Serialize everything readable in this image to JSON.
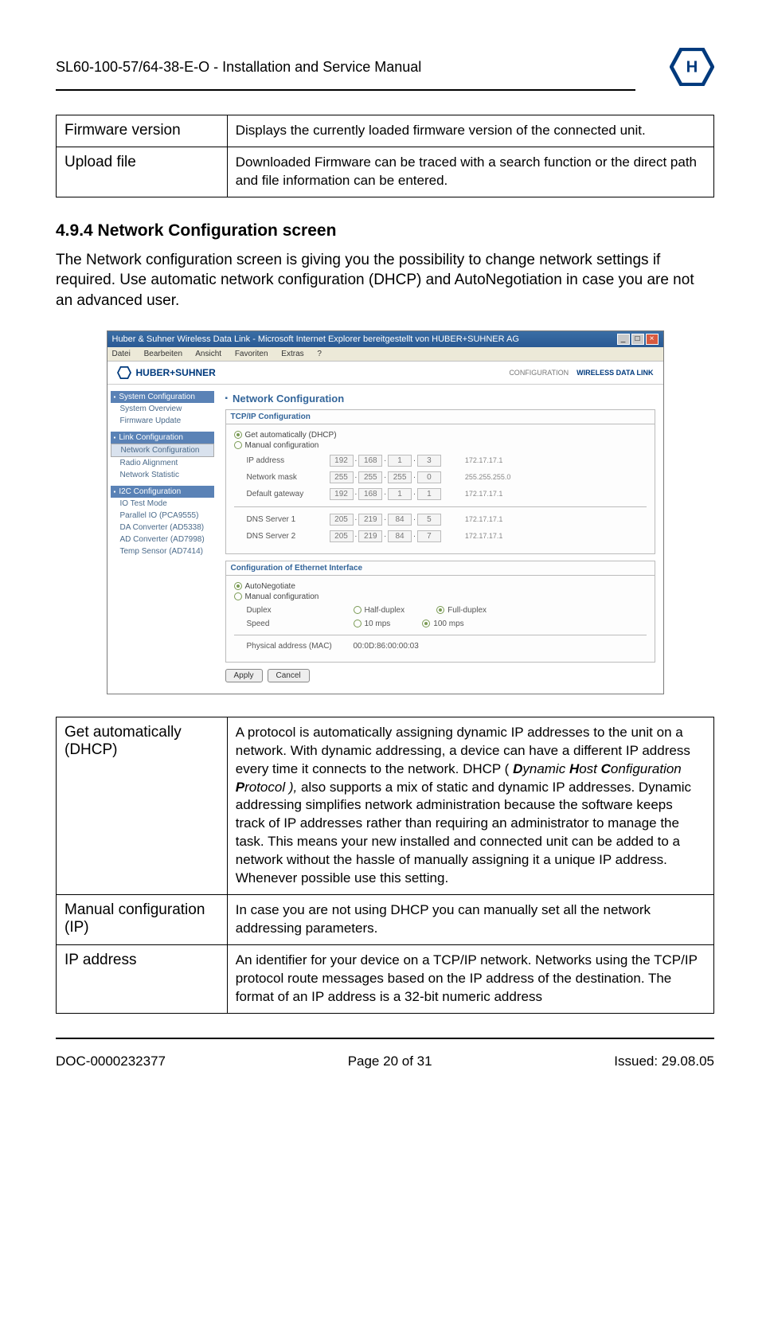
{
  "doc": {
    "header": "SL60-100-57/64-38-E-O  -  Installation and Service Manual",
    "footer_left": "DOC-0000232377",
    "footer_center": "Page 20 of 31",
    "footer_right": "Issued: 29.08.05"
  },
  "table1": {
    "rows": [
      {
        "term": "Firmware version",
        "desc": "Displays the currently loaded firmware version of the connected unit."
      },
      {
        "term": "Upload file",
        "desc": "Downloaded Firmware can be traced with a search function or the direct path and file information can be entered."
      }
    ]
  },
  "section": {
    "heading": "4.9.4  Network Configuration screen",
    "body": "The Network configuration screen is giving you the possibility to change network settings if required. Use automatic network configuration (DHCP) and AutoNegotiation in case you are not an advanced user."
  },
  "screenshot": {
    "title": "Huber & Suhner Wireless Data Link - Microsoft Internet Explorer bereitgestellt von HUBER+SUHNER AG",
    "menus": [
      "Datei",
      "Bearbeiten",
      "Ansicht",
      "Favoriten",
      "Extras",
      "?"
    ],
    "brand": "HUBER+SUHNER",
    "header_text_1": "CONFIGURATION",
    "header_text_2": "WIRELESS DATA LINK",
    "sidebar": {
      "groups": [
        {
          "head": "System Configuration",
          "items": [
            {
              "label": "System Overview",
              "active": false
            },
            {
              "label": "Firmware Update",
              "active": false
            }
          ]
        },
        {
          "head": "Link Configuration",
          "items": [
            {
              "label": "Network Configuration",
              "active": true
            },
            {
              "label": "Radio Alignment",
              "active": false
            },
            {
              "label": "Network Statistic",
              "active": false
            }
          ]
        },
        {
          "head": "I2C Configuration",
          "items": [
            {
              "label": "IO Test Mode",
              "active": false
            },
            {
              "label": "Parallel IO (PCA9555)",
              "active": false
            },
            {
              "label": "DA Converter (AD5338)",
              "active": false
            },
            {
              "label": "AD Converter (AD7998)",
              "active": false
            },
            {
              "label": "Temp Sensor (AD7414)",
              "active": false
            }
          ]
        }
      ]
    },
    "main": {
      "title": "Network Configuration",
      "tcpip": {
        "box_title": "TCP/IP Configuration",
        "radio_dhcp": "Get automatically (DHCP)",
        "radio_manual": "Manual configuration",
        "rows": [
          {
            "label": "IP address",
            "oct": [
              "192",
              "168",
              "1",
              "3"
            ],
            "example": "172.17.17.1"
          },
          {
            "label": "Network mask",
            "oct": [
              "255",
              "255",
              "255",
              "0"
            ],
            "example": "255.255.255.0"
          },
          {
            "label": "Default gateway",
            "oct": [
              "192",
              "168",
              "1",
              "1"
            ],
            "example": "172.17.17.1"
          },
          {
            "label": "DNS Server 1",
            "oct": [
              "205",
              "219",
              "84",
              "5"
            ],
            "example": "172.17.17.1"
          },
          {
            "label": "DNS Server 2",
            "oct": [
              "205",
              "219",
              "84",
              "7"
            ],
            "example": "172.17.17.1"
          }
        ]
      },
      "eth": {
        "box_title": "Configuration of Ethernet Interface",
        "radio_auto": "AutoNegotiate",
        "radio_manual": "Manual configuration",
        "duplex_label": "Duplex",
        "duplex_opts": [
          "Half-duplex",
          "Full-duplex"
        ],
        "speed_label": "Speed",
        "speed_opts": [
          "10 mps",
          "100 mps"
        ],
        "mac_label": "Physical address (MAC)",
        "mac_value": "00:0D:86:00:00:03"
      },
      "btn_apply": "Apply",
      "btn_cancel": "Cancel"
    }
  },
  "table2": {
    "rows": [
      {
        "term": "Get automatically (DHCP)",
        "desc_pre": "A protocol is automatically assigning dynamic IP addresses to the unit on a network. With dynamic addressing, a device can have a different IP address every time it connects to the network. DHCP ( ",
        "desc_em_d": "D",
        "desc_em_d2": "ynamic ",
        "desc_em_h": "H",
        "desc_em_h2": "ost ",
        "desc_em_c": "C",
        "desc_em_c2": "onfiguration ",
        "desc_em_p": "P",
        "desc_em_p2": "rotocol ),",
        "desc_post": " also supports a mix of static and dynamic IP addresses. Dynamic addressing simplifies network administration because the software keeps track of IP addresses rather than requiring an administrator to manage the task. This means your new installed and connected unit can be added to a network without the hassle of manually assigning it a unique IP address. Whenever possible use this setting."
      },
      {
        "term": "Manual configuration (IP)",
        "desc": "In case you are not using DHCP you can manually set all the network addressing parameters."
      },
      {
        "term": "IP address",
        "desc": "An identifier for your device on a TCP/IP network. Networks using the TCP/IP protocol route messages based on the IP address of the destination. The format of an IP address is a 32-bit numeric address"
      }
    ]
  }
}
